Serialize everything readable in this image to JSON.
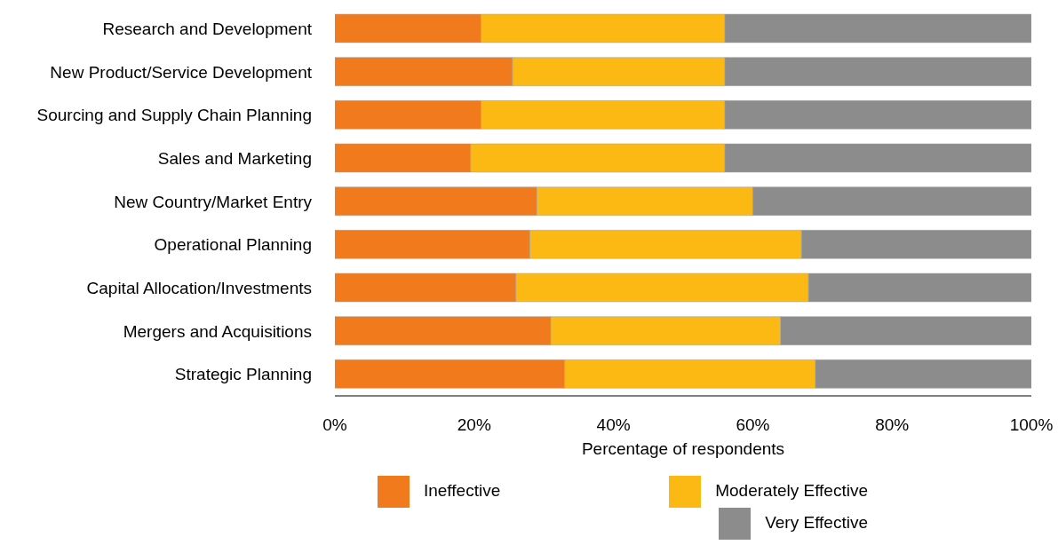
{
  "chart_data": {
    "type": "bar",
    "orientation": "horizontal",
    "stacked": true,
    "xlabel": "Percentage of respondents",
    "categories": [
      "Research and Development",
      "New Product/Service Development",
      "Sourcing and Supply Chain Planning",
      "Sales and Marketing",
      "New Country/Market Entry",
      "Operational Planning",
      "Capital Allocation/Investments",
      "Mergers and Acquisitions",
      "Strategic Planning"
    ],
    "series": [
      {
        "name": "Ineffective",
        "color": "#f07a1c",
        "values": [
          21,
          25.5,
          21,
          19.5,
          29,
          28,
          26,
          31,
          33
        ]
      },
      {
        "name": "Moderately Effective",
        "color": "#fdb913",
        "values": [
          35,
          30.5,
          35,
          36.5,
          31,
          39,
          42,
          33,
          36
        ]
      },
      {
        "name": "Very Effective",
        "color": "#8c8c8c",
        "values": [
          44,
          44,
          44,
          44,
          40,
          33,
          32,
          36,
          31
        ]
      }
    ],
    "xlim": [
      0,
      100
    ],
    "xticks": [
      {
        "value": 0,
        "label": "0%"
      },
      {
        "value": 20,
        "label": "20%"
      },
      {
        "value": 40,
        "label": "40%"
      },
      {
        "value": 60,
        "label": "60%"
      },
      {
        "value": 80,
        "label": "80%"
      },
      {
        "value": 100,
        "label": "100%"
      }
    ],
    "grid": false,
    "legend": "bottom"
  }
}
